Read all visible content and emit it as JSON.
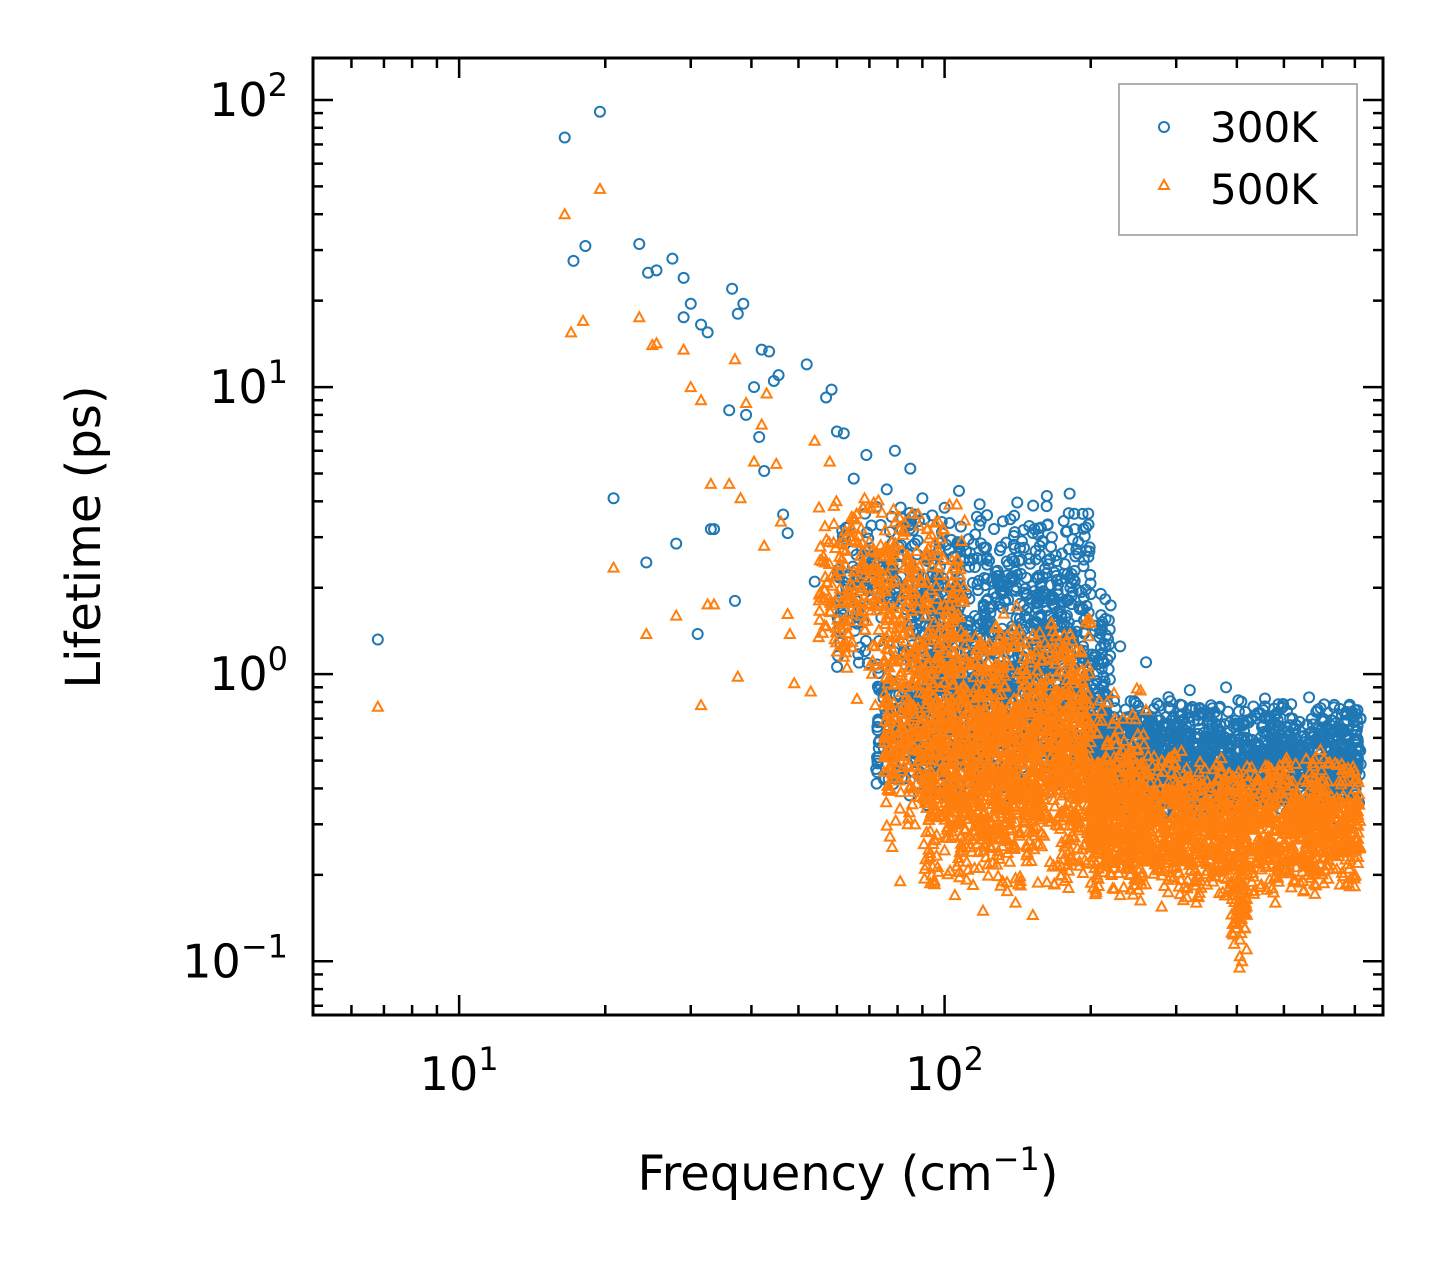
{
  "chart_data": {
    "type": "scatter",
    "xscale": "log",
    "yscale": "log",
    "xlabel": "Frequency (cm",
    "xlabel_exponent": "−1",
    "xlabel_suffix": ")",
    "ylabel": "Lifetime (ps)",
    "xlim": [
      5,
      800
    ],
    "ylim": [
      0.065,
      140
    ],
    "xticks": [
      {
        "value": 10,
        "base": "10",
        "exp": "1"
      },
      {
        "value": 100,
        "base": "10",
        "exp": "2"
      }
    ],
    "yticks": [
      {
        "value": 0.1,
        "base": "10",
        "exp": "−1"
      },
      {
        "value": 1,
        "base": "10",
        "exp": "0"
      },
      {
        "value": 10,
        "base": "10",
        "exp": "1"
      },
      {
        "value": 100,
        "base": "10",
        "exp": "2"
      }
    ],
    "legend_position": "top-right",
    "series": [
      {
        "name": "300K",
        "marker": "circle",
        "color": "#1f77b4",
        "explicit_points": [
          [
            6.8,
            1.32
          ],
          [
            16.5,
            74
          ],
          [
            19.5,
            91
          ],
          [
            17.2,
            27.5
          ],
          [
            18.2,
            31
          ],
          [
            23.5,
            31.5
          ],
          [
            24.5,
            25
          ],
          [
            25.5,
            25.5
          ],
          [
            27.5,
            28
          ],
          [
            29,
            24
          ],
          [
            20.8,
            4.1
          ],
          [
            24.3,
            2.45
          ],
          [
            28,
            2.85
          ],
          [
            29,
            17.5
          ],
          [
            30,
            19.5
          ],
          [
            31,
            1.38
          ],
          [
            31.5,
            16.5
          ],
          [
            32.5,
            15.5
          ],
          [
            33,
            3.2
          ],
          [
            33.5,
            3.2
          ],
          [
            36,
            8.3
          ],
          [
            36.5,
            22
          ],
          [
            37.5,
            18
          ],
          [
            38.5,
            19.5
          ],
          [
            37,
            1.8
          ],
          [
            39,
            8
          ],
          [
            40.5,
            10
          ],
          [
            41.5,
            6.7
          ],
          [
            42,
            13.5
          ],
          [
            43.5,
            13.3
          ],
          [
            42.5,
            5.1
          ],
          [
            44.5,
            10.5
          ],
          [
            45.5,
            11
          ],
          [
            46.5,
            3.6
          ],
          [
            47.5,
            3.1
          ],
          [
            52,
            12
          ],
          [
            54,
            2.1
          ],
          [
            57,
            9.2
          ],
          [
            58.5,
            9.8
          ],
          [
            60,
            7
          ],
          [
            62,
            6.9
          ],
          [
            65,
            4.8
          ],
          [
            69,
            5.8
          ],
          [
            72,
            2.6
          ],
          [
            76,
            4.4
          ],
          [
            79,
            6
          ],
          [
            85,
            5.2
          ],
          [
            90,
            4.1
          ],
          [
            100,
            3.8
          ],
          [
            118,
            3.3
          ],
          [
            130,
            2.7
          ],
          [
            143,
            2.75
          ],
          [
            155,
            1.85
          ],
          [
            170,
            2.2
          ],
          [
            200,
            1.9
          ],
          [
            230,
            1.25
          ],
          [
            260,
            1.1
          ],
          [
            320,
            0.88
          ],
          [
            380,
            0.9
          ],
          [
            420,
            0.55
          ],
          [
            500,
            0.6
          ],
          [
            640,
            0.71
          ],
          [
            75,
            0.43
          ],
          [
            82,
            0.5
          ],
          [
            92,
            0.35
          ]
        ],
        "clouds": [
          {
            "x": [
              60,
              200
            ],
            "y": [
              1.0,
              4.5
            ],
            "n": 500
          },
          {
            "x": [
              85,
              220
            ],
            "y": [
              0.35,
              2.2
            ],
            "n": 900
          },
          {
            "x": [
              200,
              720
            ],
            "y": [
              0.3,
              0.85
            ],
            "n": 1500
          },
          {
            "x": [
              72,
              140
            ],
            "y": [
              0.35,
              1.2
            ],
            "n": 250
          }
        ]
      },
      {
        "name": "500K",
        "marker": "triangle",
        "color": "#ff7f0e",
        "explicit_points": [
          [
            6.8,
            0.77
          ],
          [
            16.5,
            40
          ],
          [
            19.5,
            49
          ],
          [
            17,
            15.5
          ],
          [
            18,
            17
          ],
          [
            20.8,
            2.35
          ],
          [
            23.5,
            17.5
          ],
          [
            24.3,
            1.38
          ],
          [
            25,
            14
          ],
          [
            25.5,
            14.2
          ],
          [
            28,
            1.6
          ],
          [
            29,
            13.5
          ],
          [
            30,
            10
          ],
          [
            31.5,
            0.78
          ],
          [
            31.5,
            9
          ],
          [
            32.5,
            1.75
          ],
          [
            33.5,
            1.75
          ],
          [
            33,
            4.6
          ],
          [
            36,
            4.6
          ],
          [
            37,
            12.5
          ],
          [
            37.5,
            0.98
          ],
          [
            38,
            4.1
          ],
          [
            39,
            8.8
          ],
          [
            40.5,
            5.5
          ],
          [
            42,
            7.4
          ],
          [
            42.5,
            2.8
          ],
          [
            43,
            9.5
          ],
          [
            45,
            5.4
          ],
          [
            46,
            3.4
          ],
          [
            47.5,
            1.62
          ],
          [
            48,
            1.38
          ],
          [
            49,
            0.93
          ],
          [
            53,
            0.87
          ],
          [
            54,
            6.5
          ],
          [
            58,
            5.5
          ],
          [
            60,
            1.2
          ],
          [
            62,
            1.15
          ],
          [
            66,
            0.82
          ],
          [
            68,
            3.8
          ],
          [
            72,
            0.78
          ],
          [
            78,
            0.25
          ],
          [
            81,
            0.19
          ],
          [
            84,
            0.3
          ],
          [
            95,
            0.19
          ],
          [
            105,
            0.17
          ],
          [
            120,
            0.15
          ],
          [
            140,
            0.16
          ],
          [
            152,
            0.145
          ],
          [
            180,
            0.18
          ],
          [
            230,
            0.17
          ],
          [
            280,
            0.155
          ],
          [
            330,
            0.16
          ],
          [
            395,
            0.115
          ],
          [
            405,
            0.095
          ],
          [
            410,
            0.1
          ],
          [
            480,
            0.16
          ],
          [
            560,
            0.2
          ],
          [
            640,
            0.24
          ],
          [
            700,
            0.2
          ],
          [
            710,
            0.22
          ]
        ],
        "clouds": [
          {
            "x": [
              55,
              110
            ],
            "y": [
              0.9,
              4.5
            ],
            "n": 350
          },
          {
            "x": [
              75,
              200
            ],
            "y": [
              0.25,
              1.8
            ],
            "n": 1100
          },
          {
            "x": [
              90,
              260
            ],
            "y": [
              0.16,
              0.9
            ],
            "n": 900
          },
          {
            "x": [
              200,
              720
            ],
            "y": [
              0.16,
              0.55
            ],
            "n": 1600
          },
          {
            "x": [
              390,
              420
            ],
            "y": [
              0.1,
              0.25
            ],
            "n": 60
          }
        ]
      }
    ]
  }
}
